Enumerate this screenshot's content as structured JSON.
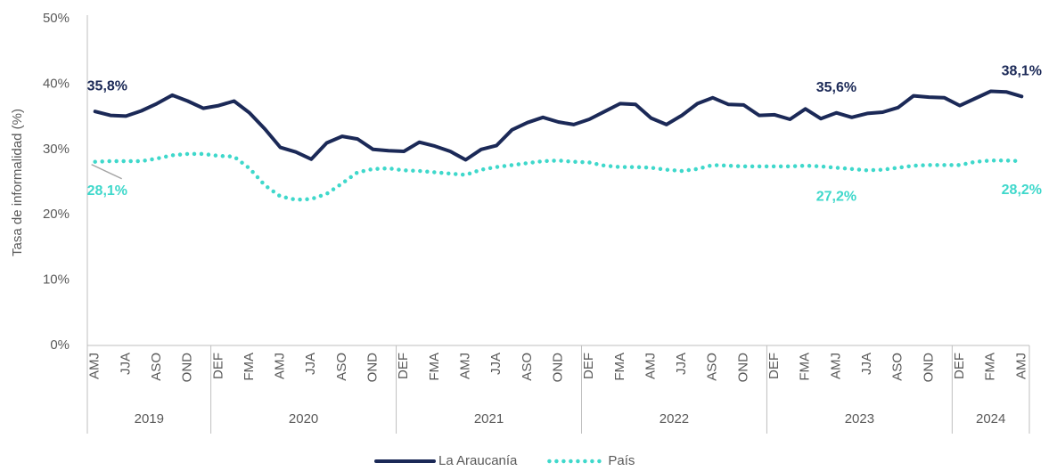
{
  "chart_data": {
    "type": "line",
    "y_label": "Tasa de informalidad (%)",
    "categories": [
      "AMJ",
      null,
      "JJA",
      null,
      "ASO",
      null,
      "OND",
      null,
      "DEF",
      null,
      "FMA",
      null,
      "AMJ",
      null,
      "JJA",
      null,
      "ASO",
      null,
      "OND",
      null,
      "DEF",
      null,
      "FMA",
      null,
      "AMJ",
      null,
      "JJA",
      null,
      "ASO",
      null,
      "OND",
      null,
      "DEF",
      null,
      "FMA",
      null,
      "AMJ",
      null,
      "JJA",
      null,
      "ASO",
      null,
      "OND",
      null,
      "DEF",
      null,
      "FMA",
      null,
      "AMJ",
      null,
      "JJA",
      null,
      "ASO",
      null,
      "OND",
      null,
      "DEF",
      null,
      "FMA",
      null,
      "AMJ"
    ],
    "years": [
      "2019",
      "2020",
      "2021",
      "2022",
      "2023",
      "2024"
    ],
    "series": [
      {
        "name": "La Araucanía",
        "color": "#1b2957",
        "style": "solid",
        "values": [
          35.8,
          35.2,
          35.1,
          35.9,
          37.0,
          38.3,
          37.4,
          36.3,
          36.7,
          37.4,
          35.6,
          33.1,
          30.3,
          29.6,
          28.5,
          31.0,
          32.0,
          31.6,
          30.0,
          29.8,
          29.7,
          31.1,
          30.5,
          29.7,
          28.4,
          30.0,
          30.6,
          33.0,
          34.1,
          34.9,
          34.2,
          33.8,
          34.6,
          35.8,
          37.0,
          36.9,
          34.8,
          33.8,
          35.2,
          37.0,
          37.9,
          36.9,
          36.8,
          35.2,
          35.3,
          34.6,
          36.2,
          34.7,
          35.6,
          34.9,
          35.5,
          35.7,
          36.4,
          38.2,
          38.0,
          37.9,
          36.7,
          37.8,
          38.9,
          38.8,
          38.1
        ],
        "value_labels": [
          "35,8%",
          null,
          null,
          null,
          null,
          null,
          null,
          null,
          null,
          null,
          null,
          null,
          null,
          null,
          null,
          null,
          null,
          null,
          null,
          null,
          null,
          null,
          null,
          null,
          null,
          null,
          null,
          null,
          null,
          null,
          null,
          null,
          null,
          null,
          null,
          null,
          null,
          null,
          null,
          null,
          null,
          null,
          null,
          null,
          null,
          null,
          null,
          null,
          "35,6%",
          null,
          null,
          null,
          null,
          null,
          null,
          null,
          null,
          null,
          null,
          null,
          "38,1%"
        ]
      },
      {
        "name": "País",
        "color": "#3fd8cb",
        "style": "dotted",
        "values": [
          28.1,
          28.2,
          28.2,
          28.2,
          28.6,
          29.1,
          29.3,
          29.3,
          29.0,
          28.9,
          27.1,
          24.5,
          22.8,
          22.3,
          22.4,
          23.2,
          24.8,
          26.5,
          27.0,
          27.1,
          26.8,
          26.7,
          26.5,
          26.3,
          26.1,
          26.9,
          27.3,
          27.6,
          27.9,
          28.2,
          28.3,
          28.1,
          28.0,
          27.5,
          27.3,
          27.3,
          27.2,
          26.9,
          26.7,
          27.0,
          27.6,
          27.5,
          27.4,
          27.4,
          27.4,
          27.4,
          27.5,
          27.4,
          27.2,
          27.0,
          26.8,
          26.9,
          27.2,
          27.5,
          27.6,
          27.6,
          27.6,
          28.1,
          28.3,
          28.3,
          28.2
        ],
        "value_labels": [
          "28,1%",
          null,
          null,
          null,
          null,
          null,
          null,
          null,
          null,
          null,
          null,
          null,
          null,
          null,
          null,
          null,
          null,
          null,
          null,
          null,
          null,
          null,
          null,
          null,
          null,
          null,
          null,
          null,
          null,
          null,
          null,
          null,
          null,
          null,
          null,
          null,
          null,
          null,
          null,
          null,
          null,
          null,
          null,
          null,
          null,
          null,
          null,
          null,
          "27,2%",
          null,
          null,
          null,
          null,
          null,
          null,
          null,
          null,
          null,
          null,
          null,
          "28,2%"
        ]
      }
    ],
    "ylim": [
      0,
      50
    ],
    "yticks": [
      {
        "value": 0,
        "label": "0%"
      },
      {
        "value": 10,
        "label": "10%"
      },
      {
        "value": 20,
        "label": "20%"
      },
      {
        "value": 30,
        "label": "30%"
      },
      {
        "value": 40,
        "label": "40%"
      },
      {
        "value": 50,
        "label": "50%"
      }
    ],
    "grid": false,
    "legend": "bottom"
  }
}
